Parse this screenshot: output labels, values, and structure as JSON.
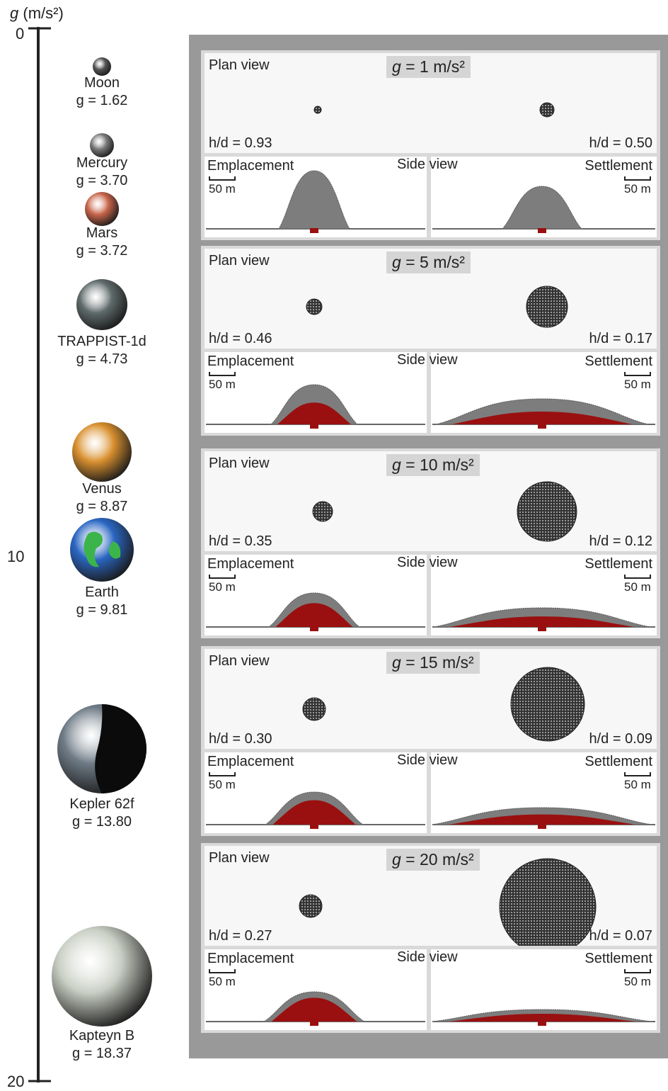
{
  "axis": {
    "label_italic": "g",
    "label_unit": " (m/s²)",
    "ticks": [
      "0",
      "10",
      "20"
    ]
  },
  "planets": [
    {
      "name": "Moon",
      "g": "g = 1.62",
      "color": "#555555"
    },
    {
      "name": "Mercury",
      "g": "g = 3.70",
      "color": "#7a7a7a"
    },
    {
      "name": "Mars",
      "g": "g = 3.72",
      "color": "#c8654a"
    },
    {
      "name": "TRAPPIST-1d",
      "g": "g = 4.73",
      "color": "#5f6a6a"
    },
    {
      "name": "Venus",
      "g": "g = 8.87",
      "color": "#d9902f"
    },
    {
      "name": "Earth",
      "g": "g = 9.81",
      "color": "#2a66c2"
    },
    {
      "name": "Kepler 62f",
      "g": "g = 13.80",
      "color": "#6e7b86"
    },
    {
      "name": "Kapteyn B",
      "g": "g = 18.37",
      "color": "#c9cfc4"
    }
  ],
  "labels": {
    "plan_view": "Plan view",
    "side_view": "Side view",
    "emplacement": "Emplacement",
    "settlement": "Settlement",
    "scale": "50 m",
    "g_italic": "g"
  },
  "panels": [
    {
      "g_value": " = 1 m/s²",
      "hd_left": "h/d = 0.93",
      "hd_right": "h/d = 0.50",
      "plan_left_r": 5,
      "plan_right_r": 10,
      "emp_h": 82,
      "emp_w": 100,
      "emp_red": 0,
      "set_h": 60,
      "set_w": 112,
      "set_red": 0
    },
    {
      "g_value": " = 5 m/s²",
      "hd_left": "h/d = 0.46",
      "hd_right": "h/d = 0.17",
      "plan_left_r": 11,
      "plan_right_r": 29,
      "emp_h": 56,
      "emp_w": 122,
      "emp_red": 0.55,
      "set_h": 36,
      "set_w": 300,
      "set_red": 0.5
    },
    {
      "g_value": " = 10 m/s²",
      "hd_left": "h/d = 0.35",
      "hd_right": "h/d = 0.12",
      "plan_left_r": 14,
      "plan_right_r": 42,
      "emp_h": 48,
      "emp_w": 128,
      "emp_red": 0.7,
      "set_h": 27,
      "set_w": 306,
      "set_red": 0.55
    },
    {
      "g_value": " = 15 m/s²",
      "hd_left": "h/d = 0.30",
      "hd_right": "h/d = 0.09",
      "plan_left_r": 16,
      "plan_right_r": 52,
      "emp_h": 46,
      "emp_w": 138,
      "emp_red": 0.75,
      "set_h": 24,
      "set_w": 310,
      "set_red": 0.6
    },
    {
      "g_value": " = 20 m/s²",
      "hd_left": "h/d = 0.27",
      "hd_right": "h/d = 0.07",
      "plan_left_r": 16,
      "plan_right_r": 68,
      "emp_h": 42,
      "emp_w": 142,
      "emp_red": 0.8,
      "set_h": 17,
      "set_w": 310,
      "set_red": 0.65
    }
  ]
}
